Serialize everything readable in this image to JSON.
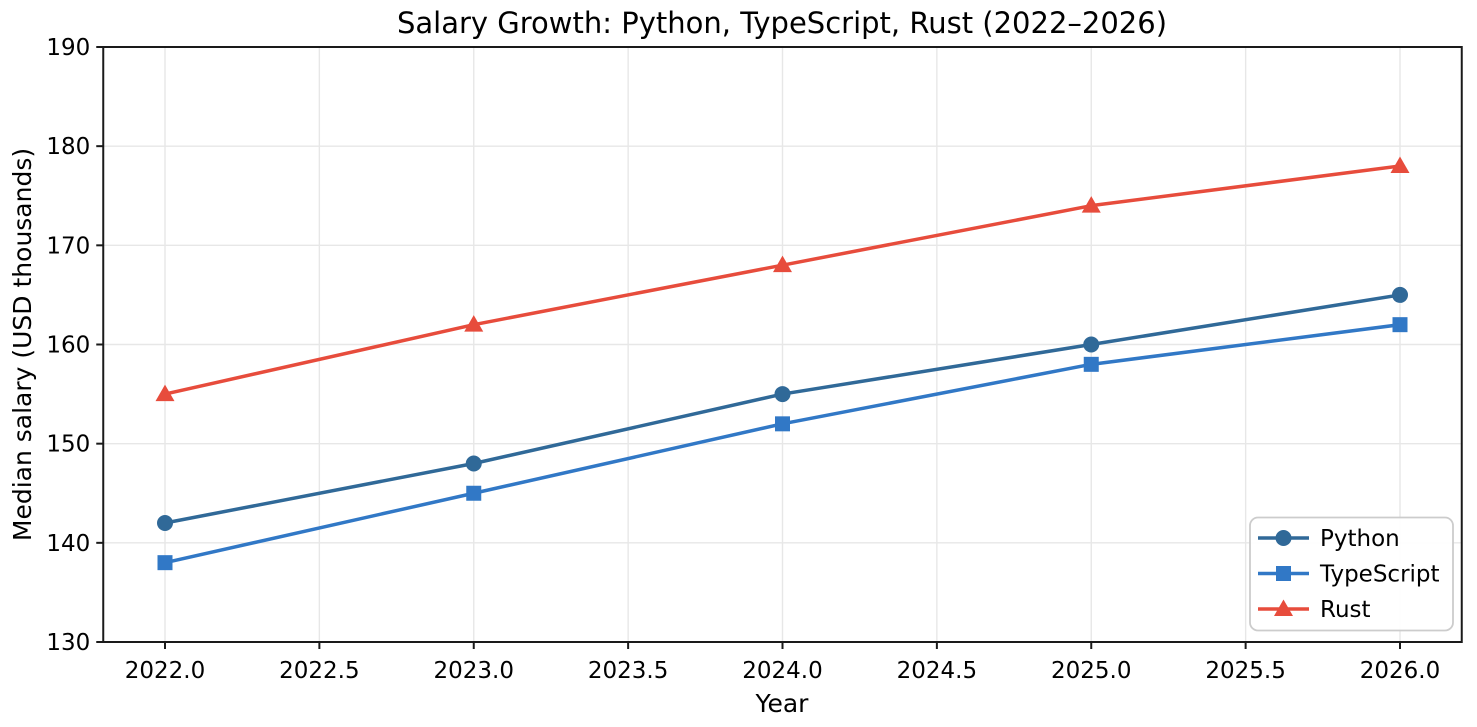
{
  "chart_data": {
    "type": "line",
    "title": "Salary Growth: Python, TypeScript, Rust (2022–2026)",
    "xlabel": "Year",
    "ylabel": "Median salary (USD thousands)",
    "x": [
      2022,
      2023,
      2024,
      2025,
      2026
    ],
    "series": [
      {
        "name": "Python",
        "marker": "circle",
        "color": "#306998",
        "values": [
          142,
          148,
          155,
          160,
          165
        ]
      },
      {
        "name": "TypeScript",
        "marker": "square",
        "color": "#3178C6",
        "values": [
          138,
          145,
          152,
          158,
          162
        ]
      },
      {
        "name": "Rust",
        "marker": "triangle",
        "color": "#E74C3C",
        "values": [
          155,
          162,
          168,
          174,
          178
        ]
      }
    ],
    "xlim": [
      2021.8,
      2026.2
    ],
    "ylim": [
      130,
      190
    ],
    "xticks": [
      2022,
      2022.5,
      2023,
      2023.5,
      2024,
      2024.5,
      2025,
      2025.5,
      2026
    ],
    "xtick_labels": [
      "2022.0",
      "2022.5",
      "2023.0",
      "2023.5",
      "2024.0",
      "2024.5",
      "2025.0",
      "2025.5",
      "2026.0"
    ],
    "yticks": [
      130,
      140,
      150,
      160,
      170,
      180,
      190
    ],
    "ytick_labels": [
      "130",
      "140",
      "150",
      "160",
      "170",
      "180",
      "190"
    ],
    "grid": true,
    "legend": {
      "position": "lower right",
      "labels": [
        "Python",
        "TypeScript",
        "Rust"
      ]
    },
    "colors": {
      "grid": "#e7e7e7",
      "spine": "#1a1a1a",
      "background": "#ffffff",
      "text": "#000000",
      "legend_border": "#cccccc"
    }
  }
}
